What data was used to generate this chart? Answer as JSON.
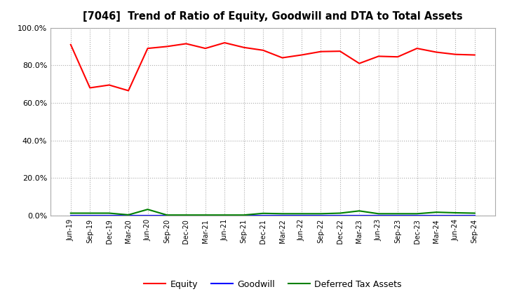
{
  "title": "[7046]  Trend of Ratio of Equity, Goodwill and DTA to Total Assets",
  "x_labels": [
    "Jun-19",
    "Sep-19",
    "Dec-19",
    "Mar-20",
    "Jun-20",
    "Sep-20",
    "Dec-20",
    "Mar-21",
    "Jun-21",
    "Sep-21",
    "Dec-21",
    "Mar-22",
    "Jun-22",
    "Sep-22",
    "Dec-22",
    "Mar-23",
    "Jun-23",
    "Sep-23",
    "Dec-23",
    "Mar-24",
    "Jun-24",
    "Sep-24"
  ],
  "equity": [
    0.91,
    0.68,
    0.695,
    0.665,
    0.89,
    0.9,
    0.915,
    0.89,
    0.92,
    0.895,
    0.88,
    0.84,
    0.855,
    0.873,
    0.875,
    0.81,
    0.848,
    0.845,
    0.89,
    0.87,
    0.858,
    0.855
  ],
  "goodwill": [
    0.0,
    0.0,
    0.0,
    0.0,
    0.0,
    0.0,
    0.0,
    0.0,
    0.0,
    0.0,
    0.0,
    0.0,
    0.0,
    0.0,
    0.0,
    0.0,
    0.0,
    0.0,
    0.0,
    0.0,
    0.0,
    0.0
  ],
  "dta": [
    0.013,
    0.013,
    0.013,
    0.004,
    0.033,
    0.003,
    0.003,
    0.003,
    0.003,
    0.003,
    0.012,
    0.01,
    0.01,
    0.01,
    0.013,
    0.025,
    0.01,
    0.01,
    0.01,
    0.018,
    0.015,
    0.013
  ],
  "equity_color": "#FF0000",
  "goodwill_color": "#0000FF",
  "dta_color": "#008000",
  "ylim": [
    0.0,
    1.0
  ],
  "yticks": [
    0.0,
    0.2,
    0.4,
    0.6,
    0.8,
    1.0
  ],
  "background_color": "#FFFFFF",
  "grid_color": "#AAAAAA",
  "legend_labels": [
    "Equity",
    "Goodwill",
    "Deferred Tax Assets"
  ]
}
